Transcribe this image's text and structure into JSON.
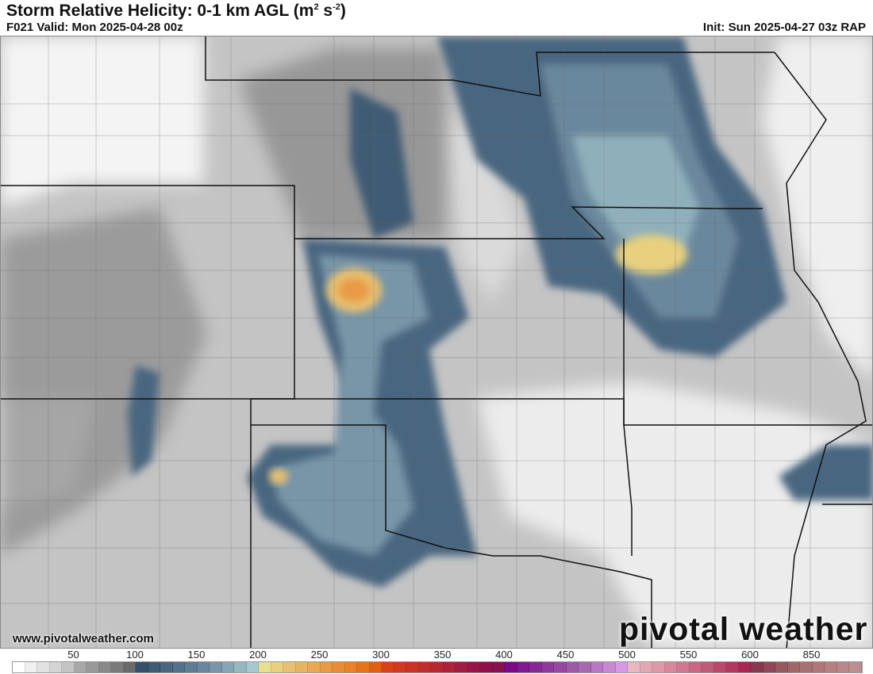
{
  "header": {
    "title": "Storm Relative Helicity: 0-1 km AGL (m",
    "title_sup1": "2",
    "title_mid": " s",
    "title_sup2": "-2",
    "title_end": ")",
    "valid": "F021 Valid: Mon 2025-04-28 00z",
    "init": "Init: Sun 2025-04-27 03z RAP"
  },
  "footer": {
    "website": "www.pivotalweather.com",
    "logo_text": "pivotal weather"
  },
  "colorbar": {
    "labels": [
      "50",
      "100",
      "150",
      "200",
      "250",
      "300",
      "350",
      "400",
      "450",
      "500",
      "550",
      "600",
      "850"
    ],
    "colors": [
      "#ffffff",
      "#f0f0f0",
      "#e2e2e2",
      "#d4d4d4",
      "#c4c4c4",
      "#a8a8a8",
      "#999999",
      "#898989",
      "#7a7a7a",
      "#6a6a6a",
      "#35506a",
      "#3f5b75",
      "#4a6680",
      "#54718a",
      "#5e7c93",
      "#6a889d",
      "#7896a8",
      "#87a6b3",
      "#97b7c0",
      "#a8c8cf",
      "#e8df8c",
      "#e8d07e",
      "#e8c070",
      "#e8b462",
      "#e8a855",
      "#e89a45",
      "#e88d36",
      "#e88128",
      "#e6741a",
      "#e06010",
      "#d8401a",
      "#d03a20",
      "#c83426",
      "#c02e2c",
      "#b82832",
      "#b02238",
      "#a01c40",
      "#981646",
      "#90104c",
      "#881052",
      "#7a0a8a",
      "#80188f",
      "#882896",
      "#90389c",
      "#9848a2",
      "#a058a8",
      "#a868b0",
      "#b878c4",
      "#c888d4",
      "#d898e4",
      "#e8b8c0",
      "#e4a8b4",
      "#e098a8",
      "#d8889c",
      "#d07890",
      "#c86884",
      "#c05878",
      "#b8486c",
      "#b03860",
      "#a82854",
      "#883850",
      "#904858",
      "#985860",
      "#a06868",
      "#a87070",
      "#b07878",
      "#b48080",
      "#b88888",
      "#bc9090"
    ]
  },
  "map_colors": {
    "background_gray": "#c8c8c8",
    "border": "#111111",
    "county_lines": "#666666"
  }
}
